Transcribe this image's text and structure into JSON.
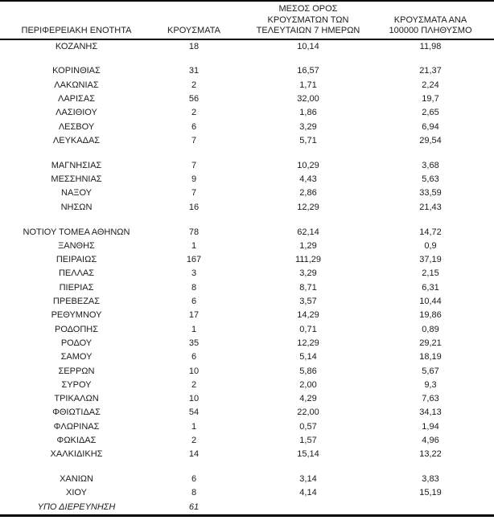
{
  "colors": {
    "background": "#ffffff",
    "text": "#1b1b1b",
    "rule_lines": "#000000"
  },
  "table": {
    "headers": {
      "region": "ΠΕΡΙΦΕΡΕΙΑΚΗ ΕΝΟΤΗΤΑ",
      "cases": "ΚΡΟΥΣΜΑΤΑ",
      "avg7": "ΜΕΣΟΣ ΟΡΟΣ\nΚΡΟΥΣΜΑΤΩΝ ΤΩΝ\nΤΕΛΕΥΤΑΙΩΝ 7 ΗΜΕΡΩΝ",
      "per100k": "ΚΡΟΥΣΜΑΤΑ ΑΝΑ\n100000 ΠΛΗΘΥΣΜΟ"
    },
    "rows": [
      {
        "region": "ΚΟΖΑΝΗΣ",
        "cases": "18",
        "avg7": "10,14",
        "per100k": "11,98"
      },
      {
        "spacer": true
      },
      {
        "region": "ΚΟΡΙΝΘΙΑΣ",
        "cases": "31",
        "avg7": "16,57",
        "per100k": "21,37"
      },
      {
        "region": "ΛΑΚΩΝΙΑΣ",
        "cases": "2",
        "avg7": "1,71",
        "per100k": "2,24"
      },
      {
        "region": "ΛΑΡΙΣΑΣ",
        "cases": "56",
        "avg7": "32,00",
        "per100k": "19,7"
      },
      {
        "region": "ΛΑΣΙΘΙΟΥ",
        "cases": "2",
        "avg7": "1,86",
        "per100k": "2,65"
      },
      {
        "region": "ΛΕΣΒΟΥ",
        "cases": "6",
        "avg7": "3,29",
        "per100k": "6,94"
      },
      {
        "region": "ΛΕΥΚΑΔΑΣ",
        "cases": "7",
        "avg7": "5,71",
        "per100k": "29,54"
      },
      {
        "spacer": true
      },
      {
        "region": "ΜΑΓΝΗΣΙΑΣ",
        "cases": "7",
        "avg7": "10,29",
        "per100k": "3,68"
      },
      {
        "region": "ΜΕΣΣΗΝΙΑΣ",
        "cases": "9",
        "avg7": "4,43",
        "per100k": "5,63"
      },
      {
        "region": "ΝΑΞΟΥ",
        "cases": "7",
        "avg7": "2,86",
        "per100k": "33,59"
      },
      {
        "region": "ΝΗΣΩΝ",
        "cases": "16",
        "avg7": "12,29",
        "per100k": "21,43"
      },
      {
        "spacer": true
      },
      {
        "region": "ΝΟΤΙΟΥ ΤΟΜΕΑ ΑΘΗΝΩΝ",
        "cases": "78",
        "avg7": "62,14",
        "per100k": "14,72"
      },
      {
        "region": "ΞΑΝΘΗΣ",
        "cases": "1",
        "avg7": "1,29",
        "per100k": "0,9"
      },
      {
        "region": "ΠΕΙΡΑΙΩΣ",
        "cases": "167",
        "avg7": "111,29",
        "per100k": "37,19"
      },
      {
        "region": "ΠΕΛΛΑΣ",
        "cases": "3",
        "avg7": "3,29",
        "per100k": "2,15"
      },
      {
        "region": "ΠΙΕΡΙΑΣ",
        "cases": "8",
        "avg7": "8,71",
        "per100k": "6,31"
      },
      {
        "region": "ΠΡΕΒΕΖΑΣ",
        "cases": "6",
        "avg7": "3,57",
        "per100k": "10,44"
      },
      {
        "region": "ΡΕΘΥΜΝΟΥ",
        "cases": "17",
        "avg7": "14,29",
        "per100k": "19,86"
      },
      {
        "region": "ΡΟΔΟΠΗΣ",
        "cases": "1",
        "avg7": "0,71",
        "per100k": "0,89"
      },
      {
        "region": "ΡΟΔΟΥ",
        "cases": "35",
        "avg7": "12,29",
        "per100k": "29,21"
      },
      {
        "region": "ΣΑΜΟΥ",
        "cases": "6",
        "avg7": "5,14",
        "per100k": "18,19"
      },
      {
        "region": "ΣΕΡΡΩΝ",
        "cases": "10",
        "avg7": "5,86",
        "per100k": "5,67"
      },
      {
        "region": "ΣΥΡΟΥ",
        "cases": "2",
        "avg7": "2,00",
        "per100k": "9,3"
      },
      {
        "region": "ΤΡΙΚΑΛΩΝ",
        "cases": "10",
        "avg7": "4,29",
        "per100k": "7,63"
      },
      {
        "region": "ΦΘΙΩΤΙΔΑΣ",
        "cases": "54",
        "avg7": "22,00",
        "per100k": "34,13"
      },
      {
        "region": "ΦΛΩΡΙΝΑΣ",
        "cases": "1",
        "avg7": "0,57",
        "per100k": "1,94"
      },
      {
        "region": "ΦΩΚΙΔΑΣ",
        "cases": "2",
        "avg7": "1,57",
        "per100k": "4,96"
      },
      {
        "region": "ΧΑΛΚΙΔΙΚΗΣ",
        "cases": "14",
        "avg7": "15,14",
        "per100k": "13,22"
      },
      {
        "spacer": true
      },
      {
        "region": "ΧΑΝΙΩΝ",
        "cases": "6",
        "avg7": "3,14",
        "per100k": "3,83"
      },
      {
        "region": "ΧΙΟΥ",
        "cases": "8",
        "avg7": "4,14",
        "per100k": "15,19"
      },
      {
        "region": "ΥΠΟ ΔΙΕΡΕΥΝΗΣΗ",
        "cases": "61",
        "avg7": "",
        "per100k": "",
        "italic": true
      }
    ]
  }
}
